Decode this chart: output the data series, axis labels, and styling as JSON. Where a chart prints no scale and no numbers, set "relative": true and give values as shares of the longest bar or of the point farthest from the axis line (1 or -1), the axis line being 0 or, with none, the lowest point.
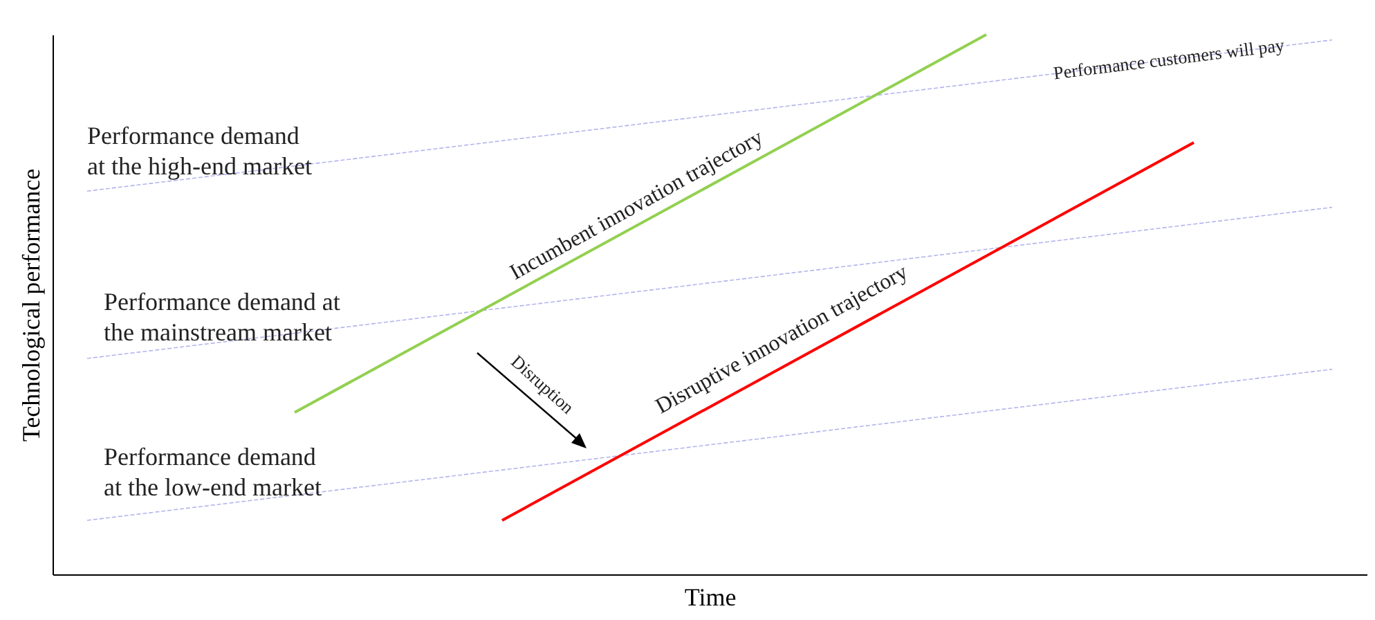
{
  "chart_data": {
    "type": "line",
    "relative": true,
    "xlabel": "Time",
    "ylabel": "Technological performance",
    "grid": false,
    "categories": [
      null,
      null,
      null,
      null,
      null,
      null,
      null,
      null,
      null,
      null,
      null,
      null,
      null,
      null,
      null,
      null,
      null,
      null,
      null,
      null,
      null,
      null,
      null,
      null,
      null,
      null,
      null,
      null,
      null,
      null,
      null,
      null,
      null,
      null,
      null,
      null,
      null,
      null,
      null
    ],
    "series": [
      {
        "color": "#b4b4ee",
        "line_style": "dashed",
        "values": [
          null,
          0.71,
          null,
          null,
          null,
          null,
          null,
          null,
          null,
          null,
          null,
          null,
          null,
          null,
          null,
          null,
          null,
          null,
          null,
          null,
          null,
          null,
          null,
          null,
          null,
          null,
          null,
          null,
          null,
          null,
          null,
          null,
          null,
          null,
          null,
          null,
          null,
          0.99,
          null
        ]
      },
      {
        "color": "#b4b4ee",
        "line_style": "dashed",
        "values": [
          null,
          0.4,
          null,
          null,
          null,
          null,
          null,
          null,
          null,
          null,
          null,
          null,
          null,
          null,
          null,
          null,
          null,
          null,
          null,
          null,
          null,
          null,
          null,
          null,
          null,
          null,
          null,
          null,
          null,
          null,
          null,
          null,
          null,
          null,
          null,
          null,
          null,
          0.68,
          null
        ]
      },
      {
        "color": "#b4b4ee",
        "line_style": "dashed",
        "values": [
          null,
          0.1,
          null,
          null,
          null,
          null,
          null,
          null,
          null,
          null,
          null,
          null,
          null,
          null,
          null,
          null,
          null,
          null,
          null,
          null,
          null,
          null,
          null,
          null,
          null,
          null,
          null,
          null,
          null,
          null,
          null,
          null,
          null,
          null,
          null,
          null,
          null,
          0.38,
          null
        ]
      },
      {
        "name": "Incumbent innovation trajectory",
        "color": "#92d050",
        "line_style": "solid",
        "values": [
          null,
          null,
          null,
          null,
          null,
          null,
          null,
          0.3,
          null,
          null,
          null,
          null,
          null,
          null,
          null,
          null,
          null,
          null,
          null,
          null,
          null,
          null,
          null,
          null,
          null,
          null,
          null,
          1.0,
          null,
          null,
          null,
          null,
          null,
          null,
          null,
          null,
          null,
          null,
          null
        ]
      },
      {
        "name": "Disruptive innovation trajectory",
        "color": "#ff0000",
        "line_style": "solid",
        "values": [
          null,
          null,
          null,
          null,
          null,
          null,
          null,
          null,
          null,
          null,
          null,
          null,
          null,
          0.1,
          null,
          null,
          null,
          null,
          null,
          null,
          null,
          null,
          null,
          null,
          null,
          null,
          null,
          null,
          null,
          null,
          null,
          null,
          null,
          0.8,
          null,
          null,
          null,
          null,
          null
        ]
      }
    ],
    "annotations": [
      "Performance demand\nat the high-end market",
      "Performance demand at\nthe mainstream market",
      "Performance demand\nat the low-end market",
      "Performance customers will pay",
      "Disruption"
    ]
  }
}
